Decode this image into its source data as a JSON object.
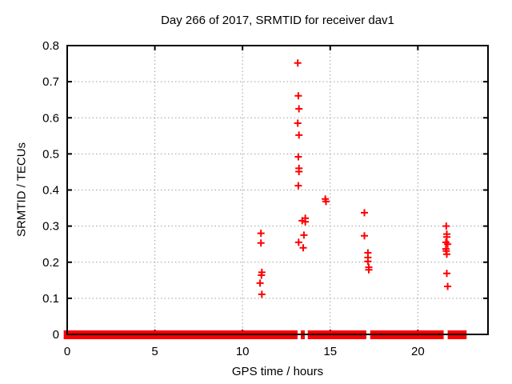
{
  "chart_data": {
    "type": "scatter",
    "title": "Day 266 of 2017, SRMTID for receiver dav1",
    "xlabel": "GPS time / hours",
    "ylabel": "SRMTID / TECUs",
    "xlim": [
      0,
      24
    ],
    "ylim": [
      0,
      0.8
    ],
    "xticks": [
      0,
      5,
      10,
      15,
      20
    ],
    "yticks": [
      0,
      0.1,
      0.2,
      0.3,
      0.4,
      0.5,
      0.6,
      0.7,
      0.8
    ],
    "grid": true,
    "legend": "none",
    "marker": "plus",
    "marker_color": "#ff0000",
    "axis_color": "#000000",
    "grid_color": "#9e9e9e",
    "zero_band_segments_hours": [
      [
        -0.2,
        13.14
      ],
      [
        13.32,
        13.55
      ],
      [
        13.72,
        17.06
      ],
      [
        17.28,
        21.47
      ],
      [
        21.7,
        22.78
      ]
    ],
    "points": [
      [
        11.05,
        0.28
      ],
      [
        11.05,
        0.253
      ],
      [
        11.1,
        0.172
      ],
      [
        11.08,
        0.164
      ],
      [
        11.0,
        0.142
      ],
      [
        11.1,
        0.111
      ],
      [
        13.15,
        0.752
      ],
      [
        13.18,
        0.661
      ],
      [
        13.22,
        0.625
      ],
      [
        13.15,
        0.585
      ],
      [
        13.22,
        0.552
      ],
      [
        13.18,
        0.492
      ],
      [
        13.22,
        0.46
      ],
      [
        13.22,
        0.451
      ],
      [
        13.18,
        0.412
      ],
      [
        13.4,
        0.315
      ],
      [
        13.58,
        0.322
      ],
      [
        13.58,
        0.312
      ],
      [
        13.5,
        0.275
      ],
      [
        13.2,
        0.255
      ],
      [
        13.46,
        0.24
      ],
      [
        14.72,
        0.375
      ],
      [
        14.76,
        0.368
      ],
      [
        16.95,
        0.337
      ],
      [
        16.95,
        0.273
      ],
      [
        17.15,
        0.226
      ],
      [
        17.15,
        0.213
      ],
      [
        17.15,
        0.202
      ],
      [
        17.2,
        0.186
      ],
      [
        17.2,
        0.179
      ],
      [
        21.62,
        0.3
      ],
      [
        21.65,
        0.278
      ],
      [
        21.65,
        0.27
      ],
      [
        21.6,
        0.255
      ],
      [
        21.7,
        0.25
      ],
      [
        21.6,
        0.237
      ],
      [
        21.62,
        0.231
      ],
      [
        21.65,
        0.222
      ],
      [
        21.65,
        0.169
      ],
      [
        21.7,
        0.133
      ]
    ]
  }
}
